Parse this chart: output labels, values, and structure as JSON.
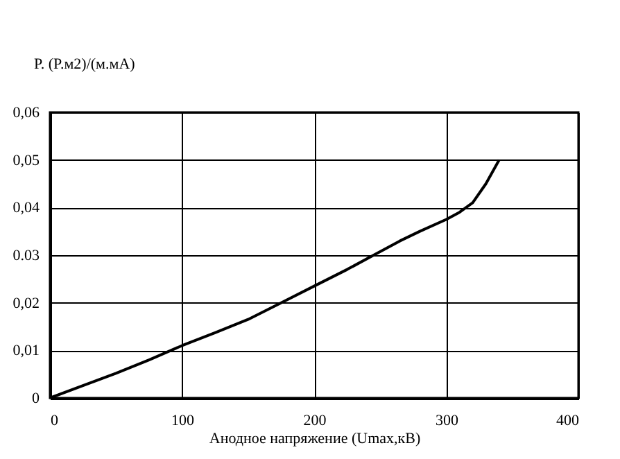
{
  "chart_data": {
    "type": "line",
    "xlabel": "Анодное напряжение (Umax,кВ)",
    "ylabel": "P. (P.м2)/(м.мА)",
    "x": [
      0,
      25,
      50,
      75,
      100,
      125,
      150,
      175,
      200,
      225,
      245,
      265,
      280,
      300,
      310,
      320,
      330,
      340
    ],
    "series": [
      {
        "color": "#000000",
        "values": [
          0,
          0.0026,
          0.0052,
          0.008,
          0.011,
          0.0137,
          0.0165,
          0.02,
          0.0235,
          0.027,
          0.03,
          0.033,
          0.035,
          0.0375,
          0.039,
          0.041,
          0.045,
          0.05
        ]
      }
    ],
    "xlim": [
      0,
      400
    ],
    "xticks": [
      0,
      100,
      200,
      300,
      400
    ],
    "ylim": [
      0,
      0.06
    ],
    "yticks": [
      {
        "value": 0,
        "label": "0"
      },
      {
        "value": 0.01,
        "label": "0,01"
      },
      {
        "value": 0.02,
        "label": "0,02"
      },
      {
        "value": 0.03,
        "label": "0.03"
      },
      {
        "value": 0.04,
        "label": "0,04"
      },
      {
        "value": 0.05,
        "label": "0,05"
      },
      {
        "value": 0.06,
        "label": "0,06"
      }
    ],
    "grid": true,
    "marker": "none",
    "line_style": "solid"
  }
}
